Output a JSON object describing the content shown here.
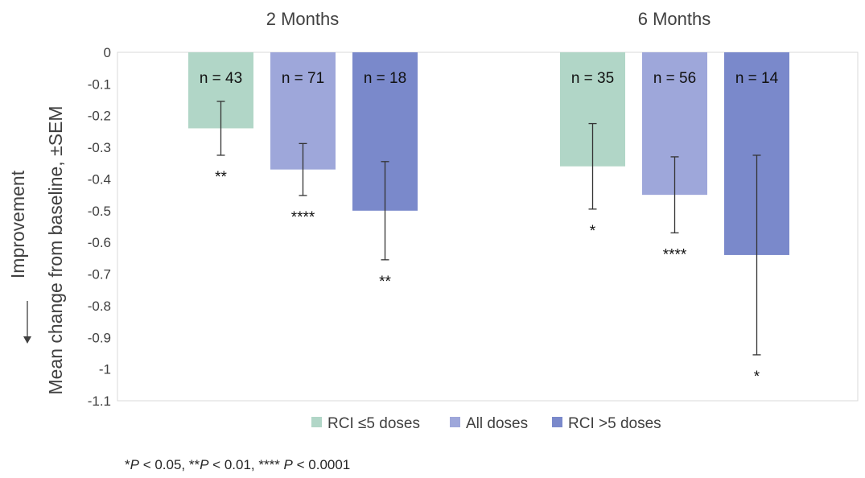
{
  "chart_data": {
    "type": "bar",
    "groups": [
      "2 Months",
      "6 Months"
    ],
    "series": [
      {
        "name": "RCI ≤5 doses",
        "color": "#b1d6c7",
        "values": [
          -0.24,
          -0.36
        ],
        "sem": [
          0.085,
          0.135
        ],
        "n_labels": [
          "n = 43",
          "n = 35"
        ],
        "sig": [
          "**",
          "*"
        ]
      },
      {
        "name": "All doses",
        "color": "#9ea7da",
        "values": [
          -0.37,
          -0.45
        ],
        "sem": [
          0.082,
          0.12
        ],
        "n_labels": [
          "n = 71",
          "n = 56"
        ],
        "sig": [
          "****",
          "****"
        ]
      },
      {
        "name": "RCI >5 doses",
        "color": "#7a89cb",
        "values": [
          -0.5,
          -0.64
        ],
        "sem": [
          0.155,
          0.315
        ],
        "n_labels": [
          "n = 18",
          "n = 14"
        ],
        "sig": [
          "**",
          "*"
        ]
      }
    ],
    "ylim": [
      -1.1,
      0
    ],
    "yticks": [
      "0",
      "-0.1",
      "-0.2",
      "-0.3",
      "-0.4",
      "-0.5",
      "-0.6",
      "-0.7",
      "-0.8",
      "-0.9",
      "-1",
      "-1.1"
    ],
    "ylabel": "Mean change from baseline, ±SEM",
    "arrow_label": "Improvement",
    "footnote": {
      "parts": [
        "*",
        "P",
        " < 0.05, **",
        "P",
        " < 0.01, **** ",
        "P",
        " < 0.0001"
      ]
    },
    "grid": false,
    "legend_position": "bottom"
  }
}
